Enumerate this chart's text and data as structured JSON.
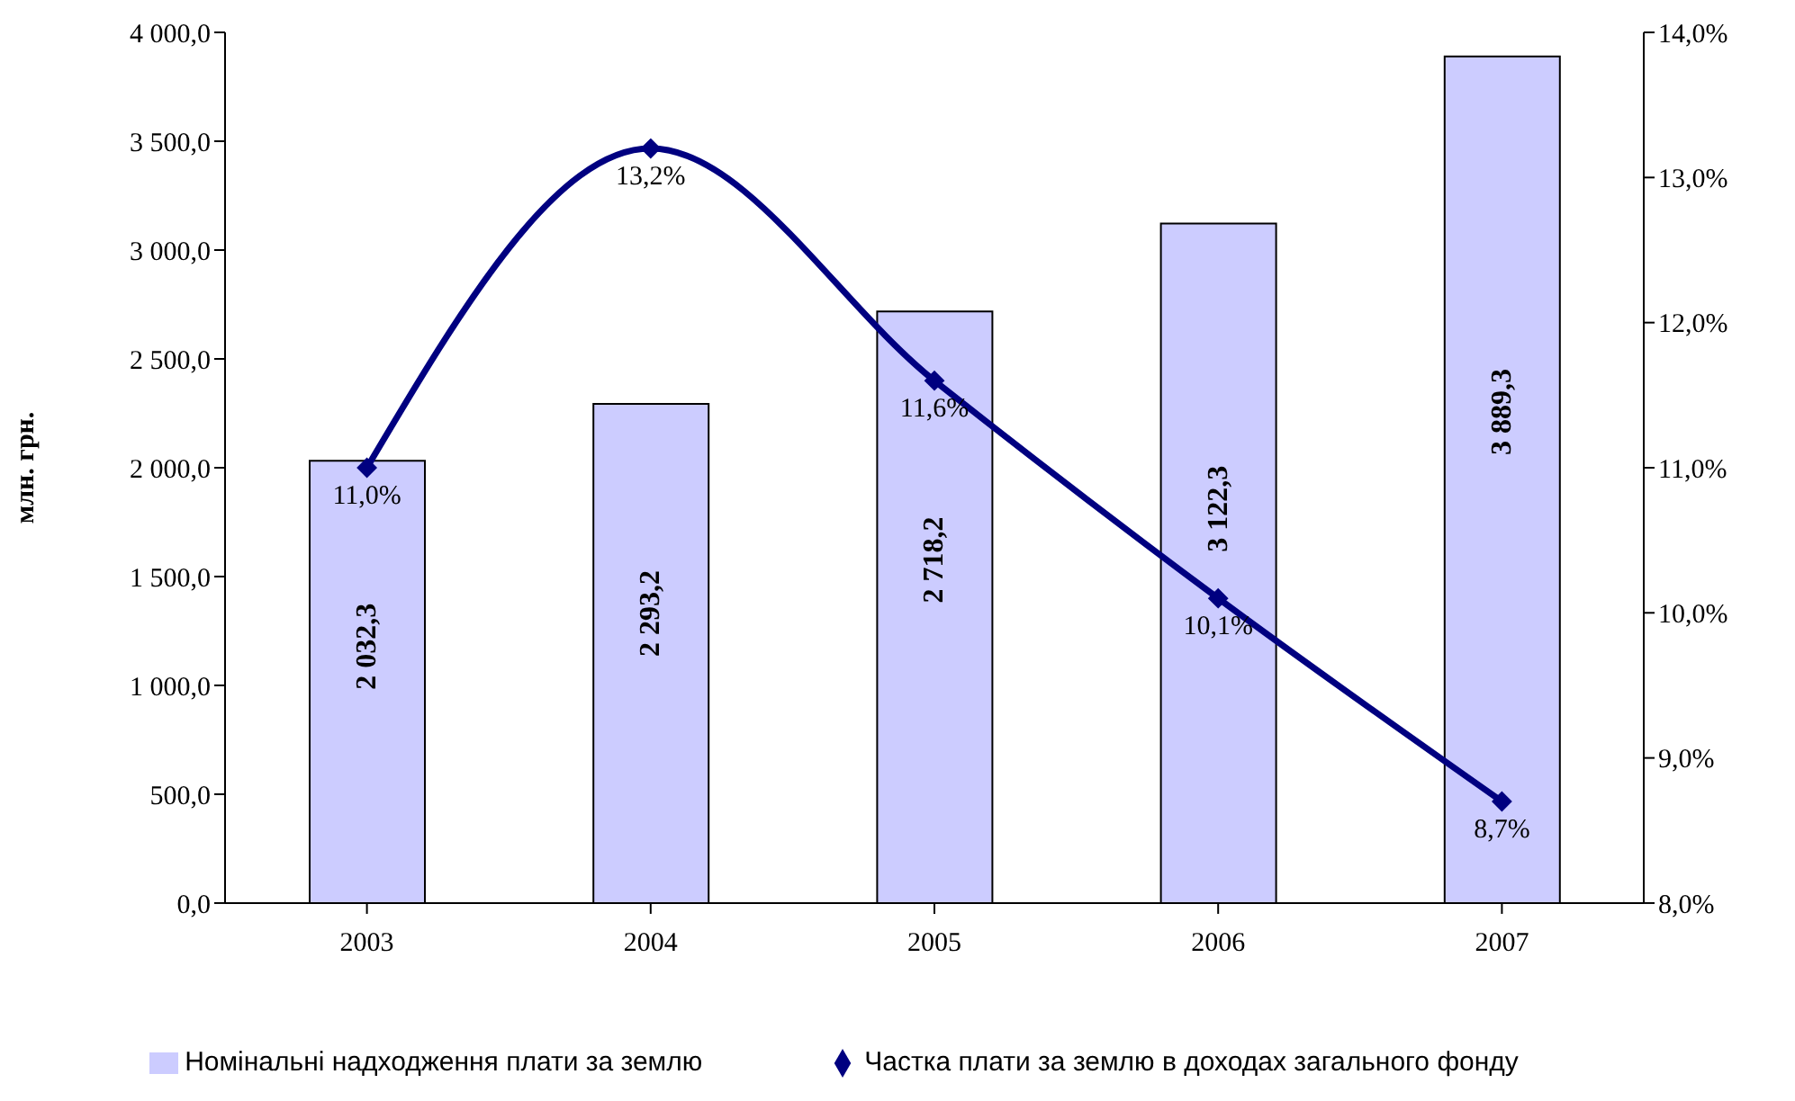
{
  "chart_data": {
    "type": "bar",
    "ylabel": "млн. грн.",
    "categories": [
      "2003",
      "2004",
      "2005",
      "2006",
      "2007"
    ],
    "series": [
      {
        "name": "Номінальні надходження плати за землю",
        "color": "#ccccff",
        "values": [
          2032.3,
          2293.2,
          2718.2,
          3122.3,
          3889.3
        ],
        "value_labels": [
          "2 032,3",
          "2 293,2",
          "2 718,2",
          "3 122,3",
          "3 889,3"
        ]
      },
      {
        "name": "Частка плати за землю в доходах загального фонду",
        "type": "line",
        "axis": "y2",
        "color": "#000080",
        "values": [
          11.0,
          13.2,
          11.6,
          10.1,
          8.7
        ],
        "value_labels": [
          "11,0%",
          "13,2%",
          "11,6%",
          "10,1%",
          "8,7%"
        ]
      }
    ],
    "ylim": [
      0,
      4000
    ],
    "yticks": [
      {
        "value": 0,
        "label": "0,0"
      },
      {
        "value": 500,
        "label": "500,0"
      },
      {
        "value": 1000,
        "label": "1 000,0"
      },
      {
        "value": 1500,
        "label": "1 500,0"
      },
      {
        "value": 2000,
        "label": "2 000,0"
      },
      {
        "value": 2500,
        "label": "2 500,0"
      },
      {
        "value": 3000,
        "label": "3 000,0"
      },
      {
        "value": 3500,
        "label": "3 500,0"
      },
      {
        "value": 4000,
        "label": "4 000,0"
      }
    ],
    "y2lim": [
      8,
      14
    ],
    "y2ticks": [
      {
        "value": 8,
        "label": "8,0%"
      },
      {
        "value": 9,
        "label": "9,0%"
      },
      {
        "value": 10,
        "label": "10,0%"
      },
      {
        "value": 11,
        "label": "11,0%"
      },
      {
        "value": 12,
        "label": "12,0%"
      },
      {
        "value": 13,
        "label": "13,0%"
      },
      {
        "value": 14,
        "label": "14,0%"
      }
    ],
    "grid": false,
    "legend": "bottom",
    "marker": "diamond"
  }
}
